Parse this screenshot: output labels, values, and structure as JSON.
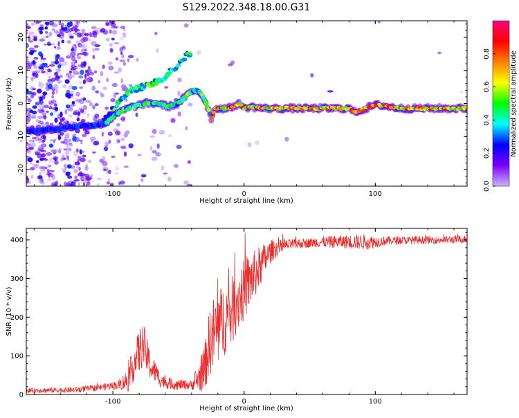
{
  "title": "S129.2022.348.18.00.G31",
  "chart_data": [
    {
      "type": "heatmap",
      "xlabel": "Height of straight line (km)",
      "ylabel": "Frequency (Hz)",
      "xlim": [
        -166,
        170
      ],
      "ylim": [
        -25,
        25
      ],
      "xticks": [
        -100,
        0,
        100
      ],
      "xtick_labels": [
        "-100",
        "0",
        "100"
      ],
      "yticks": [
        -20,
        -10,
        0,
        10,
        20
      ],
      "ytick_labels": [
        "-20",
        "-10",
        "0",
        "10",
        "20"
      ],
      "colorbar": {
        "label": "Normalized spectral amplitude",
        "range": [
          0,
          1
        ],
        "ticks": [
          0.0,
          0.2,
          0.4,
          0.6,
          0.8
        ],
        "tick_labels": [
          "0.0",
          "0.2",
          "0.4",
          "0.6",
          "0.8"
        ],
        "colors": [
          "#cbb6f7",
          "#7a00ff",
          "#0000ff",
          "#00ffff",
          "#00ff00",
          "#ffff00",
          "#ff8000",
          "#ff0000",
          "#ff0080"
        ]
      },
      "main_trace": {
        "x": [
          -166,
          -150,
          -130,
          -115,
          -105,
          -100,
          -92,
          -85,
          -75,
          -65,
          -58,
          -50,
          -45,
          -40,
          -36,
          -33,
          -30,
          -27,
          -25,
          -22,
          -18,
          -12,
          -6,
          -3,
          0,
          5,
          15,
          25,
          40,
          60,
          80,
          84,
          90,
          96,
          100,
          104,
          110,
          120,
          140,
          160,
          170
        ],
        "y": [
          -8.5,
          -8,
          -7,
          -6.5,
          -6,
          -4,
          -2,
          -1,
          0,
          0,
          -1,
          0,
          2,
          3.5,
          4,
          3,
          1,
          -2,
          -4.5,
          -1.5,
          -1.5,
          -1.5,
          -0.5,
          0,
          -1.5,
          -1,
          -1.5,
          -1.5,
          -1.5,
          -1.5,
          -1.5,
          -2.5,
          -2,
          -1,
          -0.5,
          -0.5,
          -1,
          -1.5,
          -1.5,
          -1.5,
          -1.5
        ]
      },
      "upper_branch": {
        "x": [
          -120,
          -110,
          -100,
          -92,
          -85,
          -78,
          -70,
          -62,
          -58,
          -55,
          -52,
          -48,
          -44,
          -40
        ],
        "y": [
          -7,
          -6,
          -2,
          2,
          4,
          5,
          6,
          7.5,
          9,
          10,
          11,
          13,
          14.5,
          15.5
        ]
      }
    },
    {
      "type": "line",
      "xlabel": "Height of straight line (km)",
      "ylabel": "SNR (10 * v/v)",
      "xlim": [
        -166,
        170
      ],
      "ylim": [
        0,
        430
      ],
      "xticks": [
        -100,
        0,
        100
      ],
      "xtick_labels": [
        "-100",
        "0",
        "100"
      ],
      "yticks": [
        0,
        100,
        200,
        300,
        400
      ],
      "ytick_labels": [
        "0",
        "100",
        "200",
        "300",
        "400"
      ],
      "color": "#ee2b2b",
      "envelope": {
        "x": [
          -166,
          -130,
          -110,
          -95,
          -88,
          -84,
          -80,
          -77,
          -74,
          -71,
          -68,
          -64,
          -60,
          -50,
          -40,
          -35,
          -30,
          -26,
          -22,
          -18,
          -14,
          -10,
          -6,
          -2,
          2,
          6,
          10,
          14,
          18,
          22,
          26,
          30,
          40,
          60,
          80,
          95,
          100,
          110,
          130,
          150,
          170
        ],
        "y": [
          10,
          12,
          18,
          25,
          40,
          80,
          110,
          130,
          100,
          70,
          60,
          40,
          30,
          25,
          25,
          40,
          70,
          140,
          160,
          180,
          200,
          210,
          240,
          260,
          280,
          300,
          320,
          340,
          360,
          375,
          380,
          385,
          390,
          395,
          395,
          395,
          395,
          398,
          400,
          400,
          402
        ]
      },
      "noise": {
        "x": [
          -166,
          -110,
          -95,
          -86,
          -80,
          -76,
          -72,
          -66,
          -60,
          -40,
          -30,
          -26,
          -22,
          -18,
          -10,
          0,
          10,
          20,
          30,
          50,
          80,
          95,
          105,
          120,
          170
        ],
        "amplitude": [
          6,
          8,
          12,
          40,
          60,
          55,
          40,
          25,
          15,
          12,
          60,
          90,
          110,
          100,
          90,
          80,
          60,
          30,
          15,
          12,
          18,
          20,
          12,
          10,
          10
        ]
      }
    }
  ]
}
